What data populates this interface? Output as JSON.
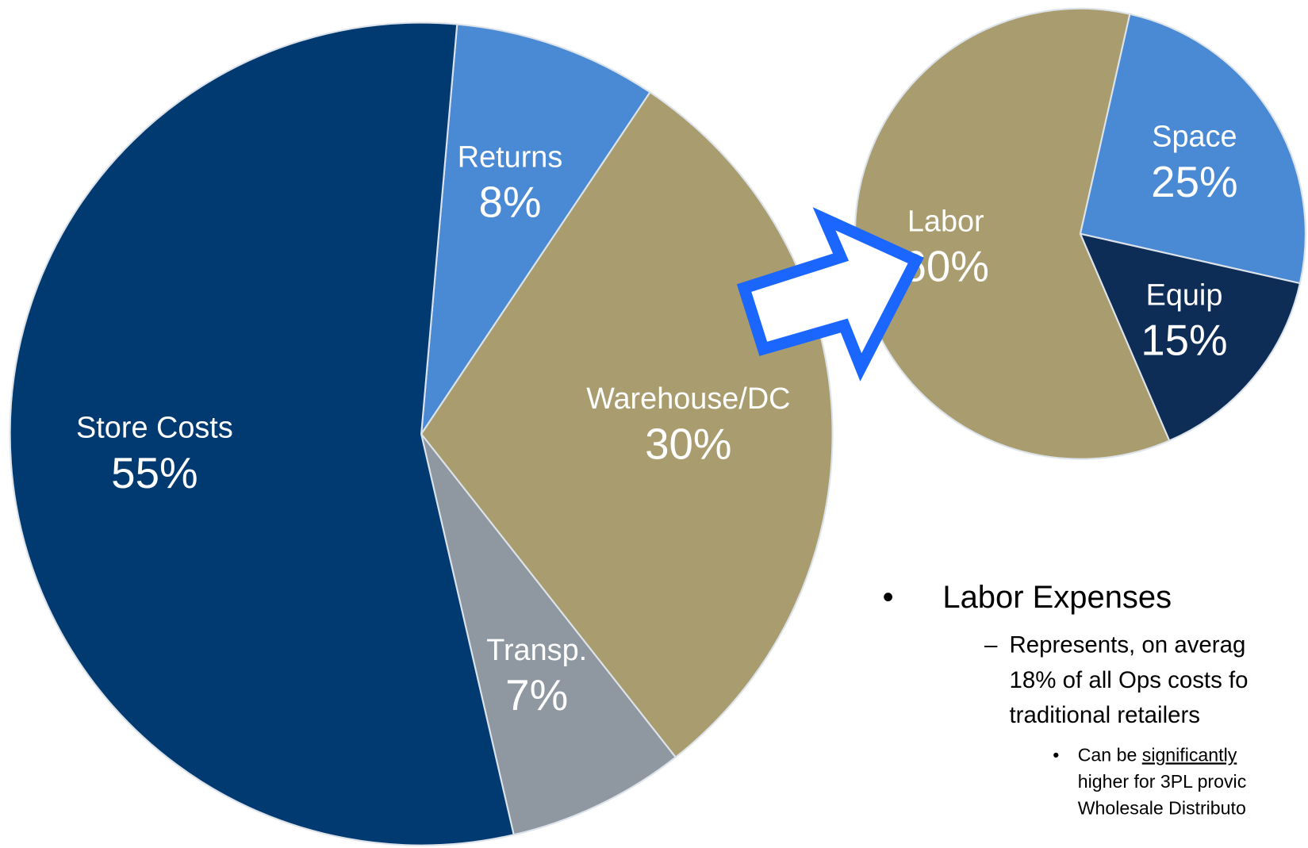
{
  "chart_data": [
    {
      "type": "pie",
      "categories": [
        "Returns",
        "Warehouse/DC",
        "Transp.",
        "Store Costs"
      ],
      "values": [
        8,
        30,
        7,
        55
      ],
      "value_labels": [
        "8%",
        "30%",
        "7%",
        "55%"
      ],
      "colors": [
        "#4a8ad4",
        "#a99d6f",
        "#8f98a0",
        "#003a70"
      ]
    },
    {
      "type": "pie",
      "categories": [
        "Space",
        "Equip",
        "Labor"
      ],
      "values": [
        25,
        15,
        60
      ],
      "value_labels": [
        "25%",
        "15%",
        "60%"
      ],
      "colors": [
        "#4a8ad4",
        "#0d2d57",
        "#a99d6f"
      ]
    }
  ],
  "notes": {
    "heading": "Labor Expenses",
    "point": [
      "Represents, on averag",
      "18% of all Ops costs fo",
      "traditional retailers"
    ],
    "detail": {
      "lead": "Can be",
      "emphasis": "significantly",
      "lines": [
        "higher for 3PL provic",
        "Wholesale Distributo"
      ]
    }
  }
}
